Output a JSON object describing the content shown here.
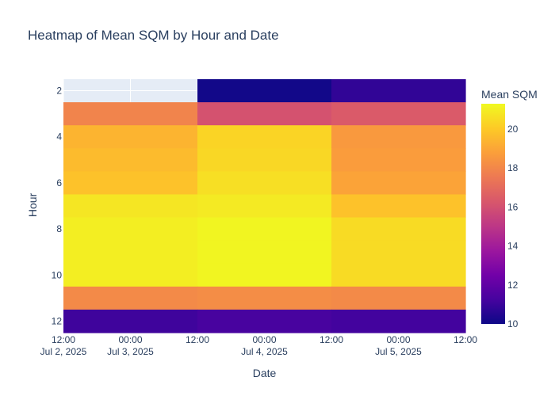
{
  "chart_data": {
    "type": "heatmap",
    "title": "Heatmap of Mean SQM by Hour and Date",
    "xlabel": "Date",
    "ylabel": "Hour",
    "colorbar_title": "Mean SQM",
    "x_columns": [
      "2025-07-03",
      "2025-07-04",
      "2025-07-05"
    ],
    "x_range": [
      "2025-07-02 12:00",
      "2025-07-05 12:00"
    ],
    "x_ticks": [
      {
        "at": "2025-07-02 12:00",
        "line1": "12:00",
        "line2": "Jul 2, 2025"
      },
      {
        "at": "2025-07-03 00:00",
        "line1": "00:00",
        "line2": "Jul 3, 2025"
      },
      {
        "at": "2025-07-03 12:00",
        "line1": "12:00",
        "line2": ""
      },
      {
        "at": "2025-07-04 00:00",
        "line1": "00:00",
        "line2": "Jul 4, 2025"
      },
      {
        "at": "2025-07-04 12:00",
        "line1": "12:00",
        "line2": ""
      },
      {
        "at": "2025-07-05 00:00",
        "line1": "00:00",
        "line2": "Jul 5, 2025"
      },
      {
        "at": "2025-07-05 12:00",
        "line1": "12:00",
        "line2": ""
      }
    ],
    "y_hours": [
      2,
      3,
      4,
      5,
      6,
      7,
      8,
      9,
      10,
      11,
      12
    ],
    "y_ticks": [
      2,
      4,
      6,
      8,
      10,
      12
    ],
    "z": [
      [
        null,
        10.1,
        10.8
      ],
      [
        17.9,
        16.1,
        16.4
      ],
      [
        19.4,
        20.3,
        18.6
      ],
      [
        19.6,
        20.4,
        18.7
      ],
      [
        19.8,
        20.6,
        18.9
      ],
      [
        20.8,
        20.9,
        19.8
      ],
      [
        21.0,
        21.2,
        20.5
      ],
      [
        21.0,
        21.2,
        20.5
      ],
      [
        21.0,
        21.2,
        20.5
      ],
      [
        18.1,
        18.2,
        18.1
      ],
      [
        11.1,
        11.3,
        11.2
      ]
    ],
    "zmin": 10,
    "zmax": 21.3,
    "colorbar_ticks": [
      10,
      12,
      14,
      16,
      18,
      20
    ],
    "colorscale": [
      "#0d0887",
      "#46039f",
      "#7201a8",
      "#9c179e",
      "#bd3786",
      "#d8576b",
      "#ed7953",
      "#fb9f3a",
      "#fdca26",
      "#f0f921"
    ],
    "missing_color": "#e5ecf6"
  }
}
